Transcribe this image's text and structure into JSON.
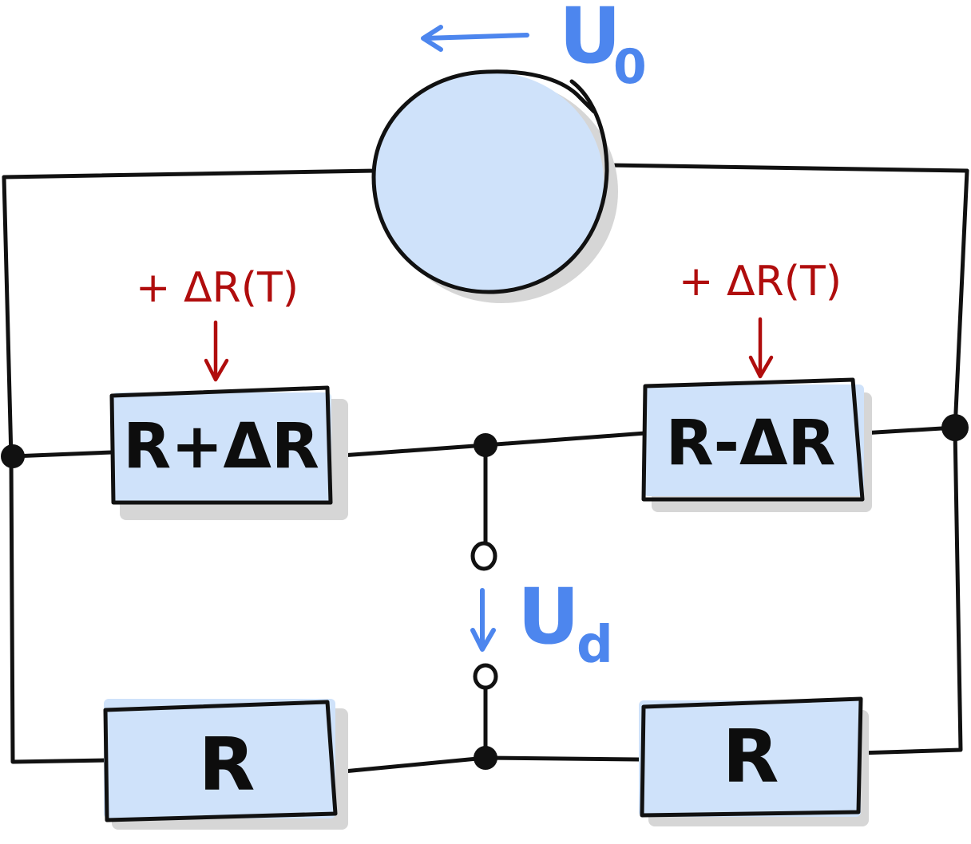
{
  "source": {
    "voltage_label": "U",
    "voltage_subscript": "0"
  },
  "resistors": {
    "top_left": "R+ΔR",
    "top_right": "R-ΔR",
    "bottom_left": "R",
    "bottom_right": "R"
  },
  "annotations": {
    "left_temperature": "+ ΔR(T)",
    "right_temperature": "+ ΔR(T)"
  },
  "output": {
    "voltage_label": "U",
    "voltage_subscript": "d"
  },
  "colors": {
    "wire": "#111111",
    "component_fill": "#cfe2fa",
    "shadow": "#d6d6d6",
    "annotation_red": "#b00d0d",
    "voltage_blue": "#4d86ee"
  }
}
